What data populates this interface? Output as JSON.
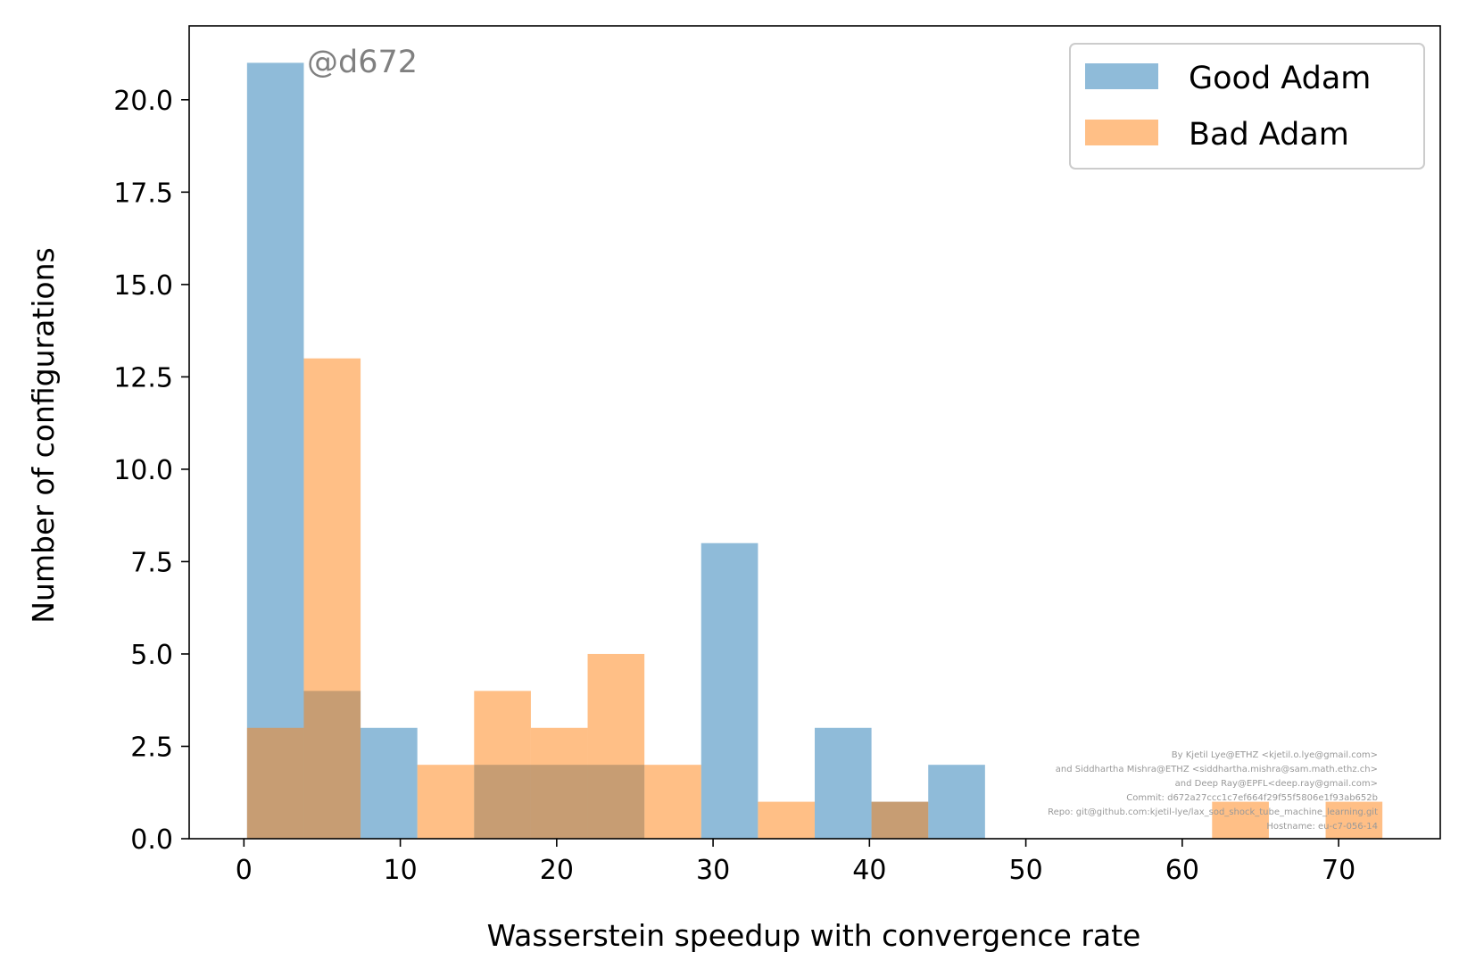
{
  "chart_data": {
    "type": "histogram",
    "title": "",
    "xlabel": "Wasserstein speedup with convergence rate",
    "ylabel": "Number of configurations",
    "xlim": [
      -3.5,
      76.5
    ],
    "ylim": [
      0,
      22
    ],
    "xticks": [
      0,
      10,
      20,
      30,
      40,
      50,
      60,
      70
    ],
    "xtick_labels": [
      "0",
      "10",
      "20",
      "30",
      "40",
      "50",
      "60",
      "70"
    ],
    "yticks": [
      0,
      2.5,
      5,
      7.5,
      10,
      12.5,
      15,
      17.5,
      20
    ],
    "ytick_labels": [
      "0.0",
      "2.5",
      "5.0",
      "7.5",
      "10.0",
      "12.5",
      "15.0",
      "17.5",
      "20.0"
    ],
    "grid": false,
    "legend_position": "top-right",
    "annotation": "@d672",
    "series": [
      {
        "name": "Good Adam",
        "color": "#1f77b4",
        "opacity": 0.5,
        "bin_edges": [
          0.2,
          3.83,
          7.46,
          11.09,
          14.72,
          18.35,
          21.98,
          25.61,
          29.24,
          32.87,
          36.5,
          40.13,
          43.76,
          47.39
        ],
        "counts": [
          21,
          4,
          3,
          0,
          2,
          2,
          2,
          0,
          8,
          0,
          3,
          1,
          2
        ]
      },
      {
        "name": "Bad Adam",
        "color": "#ff7f0e",
        "opacity": 0.5,
        "bin_edges": [
          0.2,
          3.83,
          7.46,
          11.09,
          14.72,
          18.35,
          21.98,
          25.61,
          29.24,
          32.87,
          36.5,
          40.13,
          43.76,
          47.39,
          51.02,
          54.65,
          58.28,
          61.91,
          65.54,
          69.17,
          72.8
        ],
        "counts": [
          3,
          13,
          0,
          2,
          4,
          3,
          5,
          2,
          0,
          1,
          0,
          1,
          0,
          0,
          0,
          0,
          0,
          1,
          0,
          1
        ]
      }
    ],
    "credits": [
      "By Kjetil Lye@ETHZ <kjetil.o.lye@gmail.com>",
      "and Siddhartha Mishra@ETHZ <siddhartha.mishra@sam.math.ethz.ch>",
      "and Deep Ray@EPFL<deep.ray@gmail.com>",
      "Commit: d672a27ccc1c7ef664f29f55f5806e1f93ab652b",
      "Repo: git@github.com:kjetil-lye/lax_sod_shock_tube_machine_learning.git",
      "Hostname: eu-c7-056-14"
    ]
  }
}
